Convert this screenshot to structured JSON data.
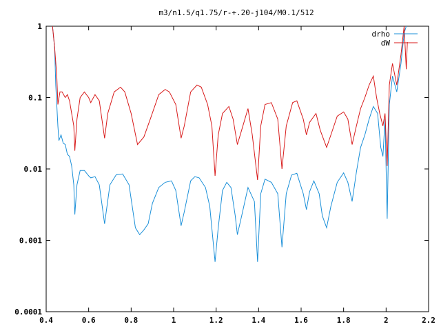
{
  "chart_data": {
    "type": "line",
    "title": "m3/n1.5/q1.75/r-+.20-j104/M0.1/512",
    "xlabel": "",
    "ylabel": "",
    "xlim": [
      0.4,
      2.2
    ],
    "ylim": [
      0.0001,
      1
    ],
    "y_scale": "log",
    "grid": false,
    "legend_position": "top-right",
    "x_ticks": [
      "0.4",
      "0.6",
      "0.8",
      "1",
      "1.2",
      "1.4",
      "1.6",
      "1.8",
      "2",
      "2.2"
    ],
    "y_ticks": [
      "0.0001",
      "0.001",
      "0.01",
      "0.1",
      "1"
    ],
    "series": [
      {
        "name": "drho",
        "color": "#1a8fd8",
        "points": [
          [
            0.43,
            1.0
          ],
          [
            0.44,
            0.5
          ],
          [
            0.445,
            0.15
          ],
          [
            0.455,
            0.04
          ],
          [
            0.46,
            0.025
          ],
          [
            0.47,
            0.03
          ],
          [
            0.48,
            0.023
          ],
          [
            0.49,
            0.022
          ],
          [
            0.5,
            0.016
          ],
          [
            0.51,
            0.015
          ],
          [
            0.52,
            0.011
          ],
          [
            0.53,
            0.006
          ],
          [
            0.535,
            0.0023
          ],
          [
            0.545,
            0.006
          ],
          [
            0.56,
            0.0095
          ],
          [
            0.58,
            0.0095
          ],
          [
            0.6,
            0.008
          ],
          [
            0.61,
            0.0075
          ],
          [
            0.63,
            0.0078
          ],
          [
            0.65,
            0.006
          ],
          [
            0.675,
            0.0017
          ],
          [
            0.7,
            0.006
          ],
          [
            0.73,
            0.0083
          ],
          [
            0.76,
            0.0085
          ],
          [
            0.79,
            0.006
          ],
          [
            0.82,
            0.0015
          ],
          [
            0.84,
            0.0012
          ],
          [
            0.86,
            0.0014
          ],
          [
            0.88,
            0.0017
          ],
          [
            0.9,
            0.0033
          ],
          [
            0.93,
            0.0055
          ],
          [
            0.96,
            0.0065
          ],
          [
            0.99,
            0.0068
          ],
          [
            1.01,
            0.005
          ],
          [
            1.035,
            0.0016
          ],
          [
            1.05,
            0.0025
          ],
          [
            1.08,
            0.0068
          ],
          [
            1.1,
            0.0078
          ],
          [
            1.12,
            0.0075
          ],
          [
            1.15,
            0.0055
          ],
          [
            1.17,
            0.003
          ],
          [
            1.195,
            0.0005
          ],
          [
            1.21,
            0.0015
          ],
          [
            1.23,
            0.005
          ],
          [
            1.25,
            0.0065
          ],
          [
            1.27,
            0.0055
          ],
          [
            1.29,
            0.0022
          ],
          [
            1.3,
            0.0012
          ],
          [
            1.32,
            0.0022
          ],
          [
            1.35,
            0.0055
          ],
          [
            1.38,
            0.0035
          ],
          [
            1.395,
            0.0005
          ],
          [
            1.41,
            0.0045
          ],
          [
            1.43,
            0.0072
          ],
          [
            1.46,
            0.0065
          ],
          [
            1.49,
            0.0045
          ],
          [
            1.51,
            0.0008
          ],
          [
            1.53,
            0.0045
          ],
          [
            1.555,
            0.0082
          ],
          [
            1.58,
            0.0087
          ],
          [
            1.61,
            0.0045
          ],
          [
            1.625,
            0.0027
          ],
          [
            1.64,
            0.0048
          ],
          [
            1.66,
            0.0068
          ],
          [
            1.685,
            0.0045
          ],
          [
            1.7,
            0.0022
          ],
          [
            1.72,
            0.0015
          ],
          [
            1.74,
            0.003
          ],
          [
            1.77,
            0.0065
          ],
          [
            1.8,
            0.0088
          ],
          [
            1.82,
            0.0065
          ],
          [
            1.84,
            0.0035
          ],
          [
            1.86,
            0.009
          ],
          [
            1.88,
            0.02
          ],
          [
            1.9,
            0.03
          ],
          [
            1.92,
            0.05
          ],
          [
            1.94,
            0.075
          ],
          [
            1.96,
            0.06
          ],
          [
            1.975,
            0.02
          ],
          [
            1.985,
            0.015
          ],
          [
            1.995,
            0.05
          ],
          [
            2.005,
            0.002
          ],
          [
            2.015,
            0.08
          ],
          [
            2.03,
            0.2
          ],
          [
            2.05,
            0.12
          ],
          [
            2.07,
            0.3
          ],
          [
            2.085,
            0.8
          ],
          [
            2.095,
            1.0
          ]
        ]
      },
      {
        "name": "dW",
        "color": "#d81a1a",
        "points": [
          [
            0.43,
            1.0
          ],
          [
            0.44,
            0.5
          ],
          [
            0.45,
            0.2
          ],
          [
            0.455,
            0.08
          ],
          [
            0.465,
            0.12
          ],
          [
            0.475,
            0.12
          ],
          [
            0.49,
            0.1
          ],
          [
            0.5,
            0.11
          ],
          [
            0.51,
            0.09
          ],
          [
            0.52,
            0.06
          ],
          [
            0.53,
            0.04
          ],
          [
            0.535,
            0.018
          ],
          [
            0.545,
            0.05
          ],
          [
            0.56,
            0.1
          ],
          [
            0.58,
            0.12
          ],
          [
            0.6,
            0.1
          ],
          [
            0.61,
            0.085
          ],
          [
            0.63,
            0.11
          ],
          [
            0.65,
            0.09
          ],
          [
            0.675,
            0.027
          ],
          [
            0.69,
            0.06
          ],
          [
            0.72,
            0.12
          ],
          [
            0.75,
            0.14
          ],
          [
            0.77,
            0.12
          ],
          [
            0.8,
            0.06
          ],
          [
            0.83,
            0.022
          ],
          [
            0.86,
            0.028
          ],
          [
            0.89,
            0.05
          ],
          [
            0.93,
            0.11
          ],
          [
            0.96,
            0.13
          ],
          [
            0.98,
            0.12
          ],
          [
            1.01,
            0.08
          ],
          [
            1.035,
            0.027
          ],
          [
            1.05,
            0.04
          ],
          [
            1.08,
            0.12
          ],
          [
            1.11,
            0.15
          ],
          [
            1.13,
            0.14
          ],
          [
            1.16,
            0.08
          ],
          [
            1.18,
            0.04
          ],
          [
            1.195,
            0.008
          ],
          [
            1.21,
            0.03
          ],
          [
            1.23,
            0.06
          ],
          [
            1.26,
            0.075
          ],
          [
            1.28,
            0.05
          ],
          [
            1.3,
            0.022
          ],
          [
            1.32,
            0.035
          ],
          [
            1.35,
            0.07
          ],
          [
            1.37,
            0.03
          ],
          [
            1.395,
            0.007
          ],
          [
            1.41,
            0.04
          ],
          [
            1.43,
            0.08
          ],
          [
            1.46,
            0.085
          ],
          [
            1.49,
            0.05
          ],
          [
            1.51,
            0.01
          ],
          [
            1.53,
            0.04
          ],
          [
            1.56,
            0.085
          ],
          [
            1.58,
            0.09
          ],
          [
            1.61,
            0.05
          ],
          [
            1.625,
            0.03
          ],
          [
            1.64,
            0.045
          ],
          [
            1.67,
            0.06
          ],
          [
            1.69,
            0.035
          ],
          [
            1.72,
            0.02
          ],
          [
            1.74,
            0.03
          ],
          [
            1.77,
            0.055
          ],
          [
            1.8,
            0.063
          ],
          [
            1.82,
            0.05
          ],
          [
            1.84,
            0.022
          ],
          [
            1.86,
            0.04
          ],
          [
            1.88,
            0.07
          ],
          [
            1.9,
            0.1
          ],
          [
            1.92,
            0.15
          ],
          [
            1.94,
            0.2
          ],
          [
            1.955,
            0.1
          ],
          [
            1.97,
            0.06
          ],
          [
            1.985,
            0.04
          ],
          [
            1.995,
            0.06
          ],
          [
            2.005,
            0.011
          ],
          [
            2.015,
            0.15
          ],
          [
            2.03,
            0.3
          ],
          [
            2.05,
            0.15
          ],
          [
            2.07,
            0.4
          ],
          [
            2.085,
            1.0
          ],
          [
            2.095,
            0.25
          ],
          [
            2.1,
            0.6
          ]
        ]
      }
    ]
  }
}
